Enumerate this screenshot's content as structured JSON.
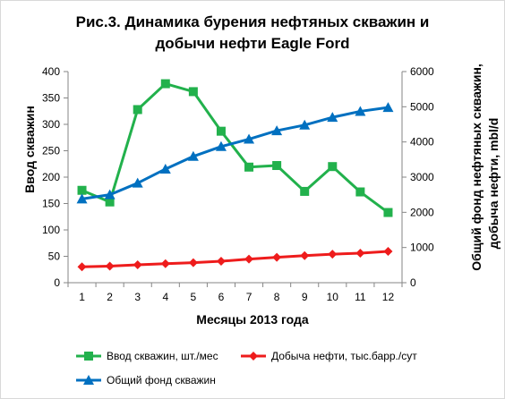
{
  "chart_data": {
    "type": "line",
    "title_lines": [
      "Рис.3. Динамика бурения нефтяных скважин и",
      "добычи нефти Eagle Ford"
    ],
    "xlabel": "Месяцы 2013 года",
    "ylabel": "Ввод скважин",
    "y2label_lines": [
      "Общий фонд нефтяных скважин,",
      "добыча нефти, mbl/d"
    ],
    "x": [
      1,
      2,
      3,
      4,
      5,
      6,
      7,
      8,
      9,
      10,
      11,
      12
    ],
    "ylim": [
      0,
      400
    ],
    "y_ticks": [
      0,
      50,
      100,
      150,
      200,
      250,
      300,
      350,
      400
    ],
    "y2lim": [
      0,
      6000
    ],
    "y2_ticks": [
      0,
      1000,
      2000,
      3000,
      4000,
      5000,
      6000
    ],
    "grid": false,
    "legend_position": "bottom",
    "series": [
      {
        "name": "Ввод скважин, шт./мес",
        "axis": "left",
        "color": "#22b14c",
        "marker": "square",
        "values": [
          175,
          153,
          328,
          377,
          362,
          287,
          219,
          222,
          173,
          220,
          172,
          133
        ]
      },
      {
        "name": "Добыча нефти, тыс.барр./сут",
        "axis": "right",
        "color": "#ee1c1c",
        "marker": "diamond",
        "values": [
          450,
          470,
          510,
          540,
          570,
          610,
          670,
          720,
          770,
          810,
          840,
          890
        ]
      },
      {
        "name": "Общий фонд скважин",
        "axis": "right",
        "color": "#0070c0",
        "marker": "triangle",
        "values": [
          2380,
          2500,
          2830,
          3230,
          3590,
          3870,
          4080,
          4320,
          4480,
          4700,
          4870,
          4980
        ]
      }
    ]
  }
}
